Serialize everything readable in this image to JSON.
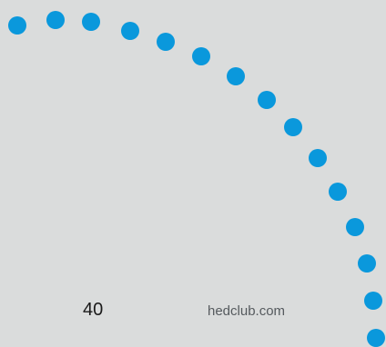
{
  "page_number": "40",
  "site_url": "hedclub.com",
  "colors": {
    "background": "#dadcdc",
    "dot": "#0a98dc",
    "page_number": "#1a1a1a",
    "site_url": "#555a5e"
  },
  "decoration": {
    "icon": "dotted-arc",
    "dot_count": 15
  }
}
